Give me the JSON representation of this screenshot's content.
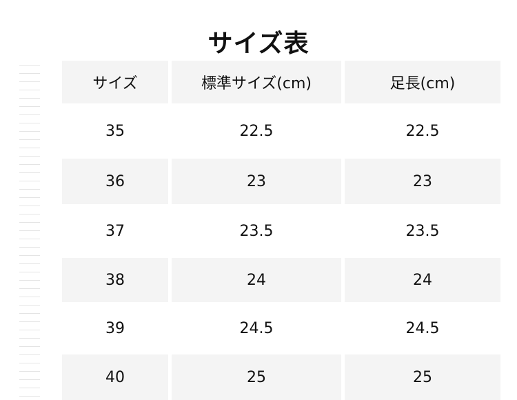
{
  "header": {
    "title": "サイズ表"
  },
  "table": {
    "columns": [
      "サイズ",
      "標準サイズ(cm)",
      "足長(cm)"
    ],
    "rows": [
      [
        "35",
        "22.5",
        "22.5"
      ],
      [
        "36",
        "23",
        "23"
      ],
      [
        "37",
        "23.5",
        "23.5"
      ],
      [
        "38",
        "24",
        "24"
      ],
      [
        "39",
        "24.5",
        "24.5"
      ],
      [
        "40",
        "25",
        "25"
      ]
    ]
  }
}
